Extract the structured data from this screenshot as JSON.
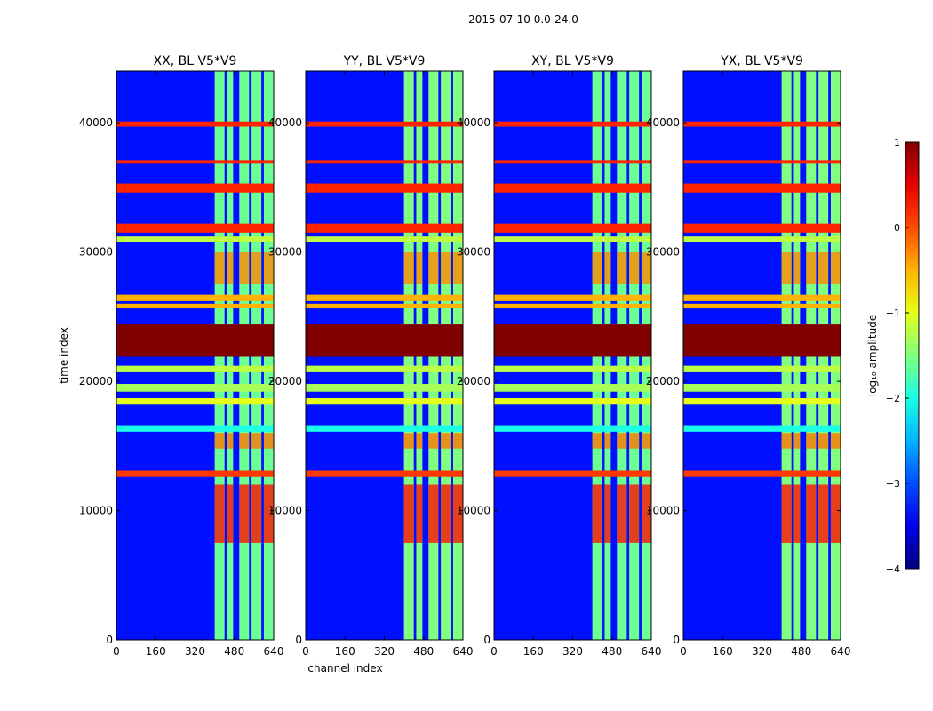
{
  "figure": {
    "suptitle": "2015-07-10 0.0-24.0"
  },
  "chart_data": [
    {
      "type": "heatmap",
      "title": "XX, BL V5*V9",
      "xlabel": "",
      "ylabel": "time index",
      "xlim": [
        0,
        640
      ],
      "ylim": [
        0,
        44000
      ],
      "xticks": [
        "0",
        "160",
        "320",
        "480",
        "640"
      ],
      "yticks": [
        "0",
        "10000",
        "20000",
        "30000",
        "40000"
      ],
      "yticks_values": [
        0,
        10000,
        20000,
        30000,
        40000
      ],
      "xticks_values": [
        0,
        160,
        320,
        480,
        640
      ]
    },
    {
      "type": "heatmap",
      "title": "YY, BL V5*V9",
      "xlabel": "channel index",
      "ylabel": "",
      "xlim": [
        0,
        640
      ],
      "ylim": [
        0,
        44000
      ],
      "xticks": [
        "0",
        "160",
        "320",
        "480",
        "640"
      ],
      "yticks": [
        "0",
        "10000",
        "20000",
        "30000",
        "40000"
      ],
      "yticks_values": [
        0,
        10000,
        20000,
        30000,
        40000
      ],
      "xticks_values": [
        0,
        160,
        320,
        480,
        640
      ]
    },
    {
      "type": "heatmap",
      "title": "XY, BL V5*V9",
      "xlabel": "",
      "ylabel": "",
      "xlim": [
        0,
        640
      ],
      "ylim": [
        0,
        44000
      ],
      "xticks": [
        "0",
        "160",
        "320",
        "480",
        "640"
      ],
      "yticks": [
        "0",
        "10000",
        "20000",
        "30000",
        "40000"
      ],
      "yticks_values": [
        0,
        10000,
        20000,
        30000,
        40000
      ],
      "xticks_values": [
        0,
        160,
        320,
        480,
        640
      ]
    },
    {
      "type": "heatmap",
      "title": "YX, BL V5*V9",
      "xlabel": "",
      "ylabel": "",
      "xlim": [
        0,
        640
      ],
      "ylim": [
        0,
        44000
      ],
      "xticks": [
        "0",
        "160",
        "320",
        "480",
        "640"
      ],
      "yticks": [
        "0",
        "10000",
        "20000",
        "30000",
        "40000"
      ],
      "yticks_values": [
        0,
        10000,
        20000,
        30000,
        40000
      ],
      "xticks_values": [
        0,
        160,
        320,
        480,
        640
      ]
    }
  ],
  "colorbar": {
    "label": "log₁₀ amplitude",
    "range": [
      -4,
      1
    ],
    "ticks": [
      "1",
      "0",
      "−1",
      "−2",
      "−3",
      "−4"
    ],
    "tick_values": [
      1,
      0,
      -1,
      -2,
      -3,
      -4
    ]
  },
  "heatmap_features": {
    "background_log_amp": -3.3,
    "channel_bands": [
      {
        "from": 400,
        "to": 440
      },
      {
        "from": 450,
        "to": 475
      },
      {
        "from": 500,
        "to": 540
      },
      {
        "from": 550,
        "to": 590
      },
      {
        "from": 600,
        "to": 640
      }
    ],
    "flagged_rows": [
      {
        "from": 21900,
        "to": 24400,
        "log_amp": 1.0
      },
      {
        "from": 31500,
        "to": 32200,
        "log_amp": 0.2
      },
      {
        "from": 34600,
        "to": 35300,
        "log_amp": 0.2
      },
      {
        "from": 39700,
        "to": 40100,
        "log_amp": 0.2
      },
      {
        "from": 36900,
        "to": 37100,
        "log_amp": 0.2
      },
      {
        "from": 12600,
        "to": 13100,
        "log_amp": 0.1
      },
      {
        "from": 30800,
        "to": 31200,
        "log_amp": -1.2
      },
      {
        "from": 19200,
        "to": 19800,
        "log_amp": -1.3
      },
      {
        "from": 18200,
        "to": 18700,
        "log_amp": -1.0
      },
      {
        "from": 16100,
        "to": 16600,
        "log_amp": -2.0
      },
      {
        "from": 20700,
        "to": 21200,
        "log_amp": -1.2
      },
      {
        "from": 26200,
        "to": 26700,
        "log_amp": -0.5
      },
      {
        "from": 25700,
        "to": 26000,
        "log_amp": -0.5
      }
    ],
    "rfi_bursts": [
      {
        "from": 7500,
        "to": 12000,
        "log_amp": 0.3
      },
      {
        "from": 27500,
        "to": 30000,
        "log_amp": -0.3
      },
      {
        "from": 14800,
        "to": 16000,
        "log_amp": -0.2
      }
    ]
  }
}
